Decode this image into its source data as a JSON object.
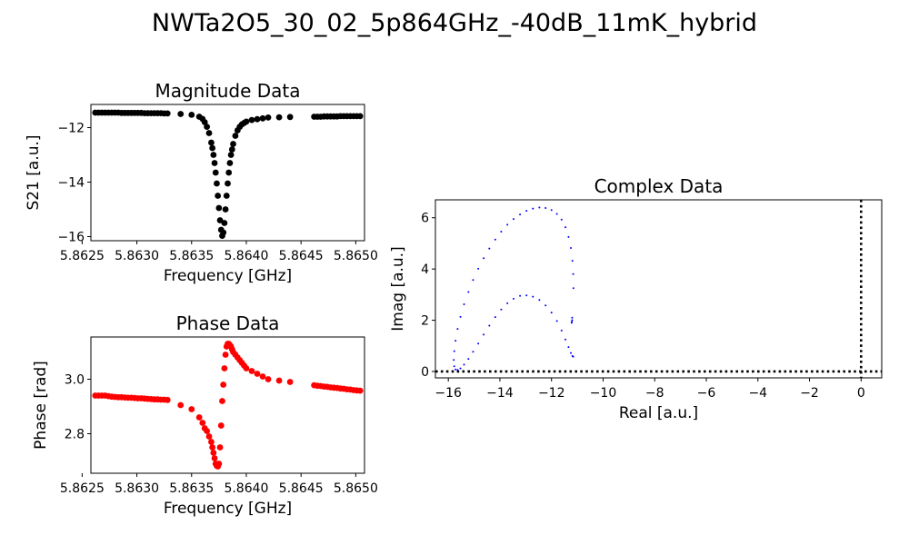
{
  "figure": {
    "title": "NWTa2O5_30_02_5p864GHz_-40dB_11mK_hybrid"
  },
  "chart_data": [
    {
      "id": "magnitude",
      "type": "scatter",
      "title": "Magnitude Data",
      "xlabel": "Frequency [GHz]",
      "ylabel": "S21 [a.u.]",
      "xlim": [
        5.86258,
        5.86508
      ],
      "ylim": [
        -16.15,
        -11.15
      ],
      "xticks": [
        5.8625,
        5.863,
        5.8635,
        5.864,
        5.8645,
        5.865
      ],
      "xtick_labels": [
        "5.8625",
        "5.8630",
        "5.8635",
        "5.8640",
        "5.8645",
        "5.8650"
      ],
      "yticks": [
        -12,
        -14,
        -16
      ],
      "ytick_labels": [
        "−12",
        "−14",
        "−16"
      ],
      "grid": false,
      "color": "#000000",
      "resonance": {
        "f0": 5.86378,
        "depth": 4.55,
        "width": 0.00011,
        "min": -16.0
      },
      "x": [
        5.86262,
        5.86265,
        5.86268,
        5.86271,
        5.86274,
        5.86277,
        5.8628,
        5.86283,
        5.86286,
        5.86289,
        5.86292,
        5.86295,
        5.86298,
        5.86301,
        5.86304,
        5.86307,
        5.8631,
        5.86313,
        5.86316,
        5.86319,
        5.86322,
        5.86325,
        5.86328,
        5.8634,
        5.8635,
        5.86357,
        5.8636,
        5.86362,
        5.86364,
        5.86366,
        5.86368,
        5.86369,
        5.8637,
        5.86371,
        5.86372,
        5.86373,
        5.86374,
        5.86375,
        5.86376,
        5.86377,
        5.86378,
        5.86379,
        5.8638,
        5.86381,
        5.86382,
        5.86383,
        5.86384,
        5.86385,
        5.86386,
        5.86387,
        5.86388,
        5.8639,
        5.86392,
        5.86394,
        5.86396,
        5.86398,
        5.864,
        5.86405,
        5.8641,
        5.86415,
        5.8642,
        5.8643,
        5.8644,
        5.86462,
        5.86465,
        5.86468,
        5.86471,
        5.86474,
        5.86477,
        5.8648,
        5.86483,
        5.86486,
        5.86489,
        5.86492,
        5.86495,
        5.86498,
        5.86501,
        5.86504
      ],
      "y": [
        -11.45,
        -11.45,
        -11.45,
        -11.45,
        -11.45,
        -11.45,
        -11.45,
        -11.45,
        -11.46,
        -11.46,
        -11.46,
        -11.46,
        -11.46,
        -11.46,
        -11.46,
        -11.47,
        -11.47,
        -11.47,
        -11.47,
        -11.47,
        -11.47,
        -11.48,
        -11.48,
        -11.5,
        -11.53,
        -11.6,
        -11.68,
        -11.8,
        -11.97,
        -12.2,
        -12.55,
        -12.75,
        -13.0,
        -13.3,
        -13.65,
        -14.05,
        -14.5,
        -14.95,
        -15.4,
        -15.75,
        -15.97,
        -15.85,
        -15.5,
        -15.0,
        -14.5,
        -14.05,
        -13.65,
        -13.3,
        -13.0,
        -12.8,
        -12.6,
        -12.3,
        -12.1,
        -11.97,
        -11.88,
        -11.83,
        -11.78,
        -11.72,
        -11.69,
        -11.66,
        -11.63,
        -11.62,
        -11.61,
        -11.6,
        -11.6,
        -11.6,
        -11.59,
        -11.59,
        -11.59,
        -11.59,
        -11.59,
        -11.58,
        -11.58,
        -11.58,
        -11.58,
        -11.58,
        -11.58,
        -11.58
      ]
    },
    {
      "id": "phase",
      "type": "scatter",
      "title": "Phase Data",
      "xlabel": "Frequency [GHz]",
      "ylabel": "Phase [rad]",
      "xlim": [
        5.86258,
        5.86508
      ],
      "ylim": [
        2.655,
        3.155
      ],
      "xticks": [
        5.8625,
        5.863,
        5.8635,
        5.864,
        5.8645,
        5.865
      ],
      "xtick_labels": [
        "5.8625",
        "5.8630",
        "5.8635",
        "5.8640",
        "5.8645",
        "5.8650"
      ],
      "yticks": [
        3.0,
        2.8
      ],
      "ytick_labels": [
        "3.0",
        "2.8"
      ],
      "grid": false,
      "color": "#ff0000",
      "x": [
        5.86262,
        5.86265,
        5.86268,
        5.86271,
        5.86274,
        5.86277,
        5.8628,
        5.86283,
        5.86286,
        5.86289,
        5.86292,
        5.86295,
        5.86298,
        5.86301,
        5.86304,
        5.86307,
        5.8631,
        5.86313,
        5.86316,
        5.86319,
        5.86322,
        5.86325,
        5.86328,
        5.8634,
        5.8635,
        5.86357,
        5.8636,
        5.86362,
        5.86364,
        5.86366,
        5.86368,
        5.86369,
        5.8637,
        5.86371,
        5.86372,
        5.86373,
        5.86374,
        5.86375,
        5.86376,
        5.86377,
        5.86378,
        5.86379,
        5.8638,
        5.86381,
        5.86382,
        5.86383,
        5.86384,
        5.86385,
        5.86386,
        5.86387,
        5.86388,
        5.8639,
        5.86392,
        5.86394,
        5.86396,
        5.86398,
        5.864,
        5.86405,
        5.8641,
        5.86415,
        5.8642,
        5.8643,
        5.8644,
        5.86462,
        5.86465,
        5.86468,
        5.86471,
        5.86474,
        5.86477,
        5.8648,
        5.86483,
        5.86486,
        5.86489,
        5.86492,
        5.86495,
        5.86498,
        5.86501,
        5.86504
      ],
      "y": [
        2.94,
        2.94,
        2.94,
        2.94,
        2.938,
        2.936,
        2.935,
        2.934,
        2.934,
        2.933,
        2.932,
        2.932,
        2.931,
        2.93,
        2.93,
        2.929,
        2.928,
        2.927,
        2.926,
        2.926,
        2.925,
        2.925,
        2.924,
        2.905,
        2.89,
        2.86,
        2.84,
        2.82,
        2.81,
        2.79,
        2.77,
        2.75,
        2.73,
        2.71,
        2.69,
        2.682,
        2.68,
        2.69,
        2.75,
        2.83,
        2.92,
        2.98,
        3.04,
        3.09,
        3.12,
        3.13,
        3.13,
        3.125,
        3.12,
        3.11,
        3.1,
        3.09,
        3.08,
        3.07,
        3.06,
        3.05,
        3.04,
        3.03,
        3.02,
        3.01,
        3.0,
        2.995,
        2.99,
        2.978,
        2.976,
        2.975,
        2.973,
        2.972,
        2.97,
        2.969,
        2.968,
        2.966,
        2.965,
        2.963,
        2.962,
        2.96,
        2.959,
        2.958
      ]
    },
    {
      "id": "complex",
      "type": "scatter",
      "title": "Complex Data",
      "xlabel": "Real [a.u.]",
      "ylabel": "Imag [a.u.]",
      "xlim": [
        -16.5,
        0.8
      ],
      "ylim": [
        -0.25,
        6.7
      ],
      "xticks": [
        -16,
        -14,
        -12,
        -10,
        -8,
        -6,
        -4,
        -2,
        0
      ],
      "xtick_labels": [
        "−16",
        "−14",
        "−12",
        "−10",
        "−8",
        "−6",
        "−4",
        "−2",
        "0"
      ],
      "yticks": [
        0,
        2,
        4,
        6
      ],
      "ytick_labels": [
        "0",
        "2",
        "4",
        "6"
      ],
      "grid": false,
      "color": "#0000ff",
      "reference_lines": {
        "color": "#000000",
        "style": "dotted",
        "x": 0,
        "y": 0
      },
      "x": [
        -11.15,
        -11.16,
        -11.19,
        -11.25,
        -11.34,
        -11.46,
        -11.61,
        -11.79,
        -12.0,
        -12.23,
        -12.47,
        -12.72,
        -12.97,
        -13.22,
        -13.47,
        -13.71,
        -13.95,
        -14.18,
        -14.41,
        -14.63,
        -14.84,
        -15.04,
        -15.22,
        -15.39,
        -15.53,
        -15.64,
        -15.72,
        -15.77,
        -15.79,
        -15.77,
        -15.72,
        -15.64,
        -15.53,
        -15.39,
        -15.22,
        -15.04,
        -14.84,
        -14.63,
        -14.41,
        -14.18,
        -13.95,
        -13.71,
        -13.47,
        -13.22,
        -12.97,
        -12.72,
        -12.47,
        -12.23,
        -12.0,
        -11.79,
        -11.61,
        -11.46,
        -11.34,
        -11.25,
        -11.19,
        -11.16,
        -11.2,
        -11.2,
        -11.21,
        -11.22
      ],
      "y": [
        3.25,
        3.8,
        4.32,
        4.82,
        5.25,
        5.63,
        5.93,
        6.15,
        6.3,
        6.38,
        6.4,
        6.36,
        6.27,
        6.13,
        5.95,
        5.73,
        5.46,
        5.15,
        4.8,
        4.42,
        4.01,
        3.57,
        3.1,
        2.62,
        2.13,
        1.66,
        1.2,
        0.79,
        0.45,
        0.2,
        0.08,
        0.06,
        0.12,
        0.27,
        0.49,
        0.77,
        1.09,
        1.44,
        1.79,
        2.12,
        2.42,
        2.66,
        2.84,
        2.95,
        2.97,
        2.92,
        2.79,
        2.58,
        2.3,
        1.97,
        1.6,
        1.25,
        0.95,
        0.72,
        0.6,
        0.58,
        2.1,
        2.0,
        1.95,
        1.9
      ]
    }
  ]
}
